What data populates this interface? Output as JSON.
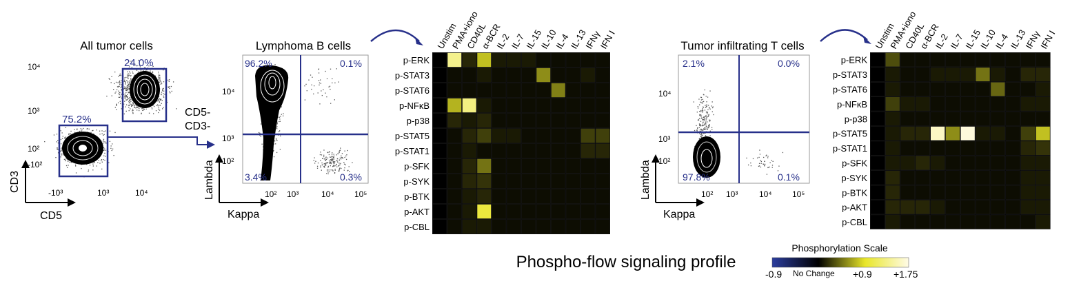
{
  "figure_title": "Phospho-flow signaling profile",
  "scatter_panels": [
    {
      "title": "All tumor cells",
      "x_label": "CD5",
      "y_label": "CD3",
      "x_ticks": [
        "-10³",
        "10³",
        "10⁴"
      ],
      "y_ticks": [
        "10⁴",
        "10³",
        "10²",
        "-10²"
      ],
      "gates": [
        {
          "label": "24.0%"
        },
        {
          "label": "75.2%"
        }
      ],
      "gate_annotation": [
        "CD5-",
        "CD3-"
      ]
    },
    {
      "title": "Lymphoma B cells",
      "x_label": "Kappa",
      "y_label": "Lambda",
      "x_ticks": [
        "10²",
        "10³",
        "10⁴",
        "10⁵"
      ],
      "y_ticks": [
        "10⁴",
        "10³",
        "10²"
      ],
      "quadrants": {
        "top_left": "96.2%",
        "top_right": "0.1%",
        "bottom_left": "3.4%",
        "bottom_right": "0.3%"
      }
    },
    {
      "title": "Tumor infiltrating T cells",
      "x_label": "Kappa",
      "y_label": "Lambda",
      "x_ticks": [
        "10²",
        "10³",
        "10⁴",
        "10⁵"
      ],
      "y_ticks": [
        "10⁴",
        "10³",
        "10²"
      ],
      "quadrants": {
        "top_left": "2.1%",
        "top_right": "0.0%",
        "bottom_left": "97.8%",
        "bottom_right": "0.1%"
      }
    }
  ],
  "chart_data": [
    {
      "type": "heatmap",
      "columns": [
        "Unstim",
        "PMA+iono",
        "CD40L",
        "α-BCR",
        "IL-2",
        "IL-7",
        "IL-15",
        "IL-10",
        "IL-4",
        "IL-13",
        "IFNγ",
        "IFN I"
      ],
      "rows": [
        "p-ERK",
        "p-STAT3",
        "p-STAT6",
        "p-NFκB",
        "p-p38",
        "p-STAT5",
        "p-STAT1",
        "p-SFK",
        "p-SYK",
        "p-BTK",
        "p-AKT",
        "p-CBL"
      ],
      "values": [
        [
          0,
          1.35,
          0.15,
          0.75,
          0.1,
          0.1,
          0.1,
          0.05,
          0.05,
          0.05,
          0.05,
          0.05
        ],
        [
          0,
          0.05,
          0.05,
          0.1,
          0.05,
          0.05,
          0.05,
          0.55,
          0.05,
          0.05,
          0.1,
          0.05
        ],
        [
          0,
          0.05,
          0.05,
          0.05,
          0.05,
          0.05,
          0.05,
          0.05,
          0.5,
          0.05,
          0.05,
          0.05
        ],
        [
          0,
          0.7,
          1.3,
          0.1,
          0.05,
          0.05,
          0.05,
          0.05,
          0.05,
          0.05,
          0.05,
          0.05
        ],
        [
          0,
          0.15,
          0.1,
          0.15,
          0.05,
          0.05,
          0.05,
          0.05,
          0.05,
          0.05,
          0.05,
          0.05
        ],
        [
          0,
          0.05,
          0.15,
          0.25,
          0.1,
          0.1,
          0.05,
          0.05,
          0.05,
          0.05,
          0.25,
          0.25
        ],
        [
          0,
          0.05,
          0.1,
          0.05,
          0.05,
          0.05,
          0.05,
          0.05,
          0.05,
          0.05,
          0.15,
          0.15
        ],
        [
          0,
          0.05,
          0.15,
          0.45,
          0.05,
          0.05,
          0.05,
          0.05,
          0.05,
          0.05,
          0.05,
          0.05
        ],
        [
          0,
          0.05,
          0.15,
          0.2,
          0.05,
          0.05,
          0.05,
          0.05,
          0.05,
          0.05,
          0.05,
          0.05
        ],
        [
          0,
          0.05,
          0.1,
          0.15,
          0.05,
          0.05,
          0.05,
          0.05,
          0.05,
          0.05,
          0.05,
          0.05
        ],
        [
          0,
          0.05,
          0.1,
          1.0,
          0.05,
          0.05,
          0.05,
          0.05,
          0.05,
          0.05,
          0.05,
          0.05
        ],
        [
          0,
          0.05,
          0.1,
          0.1,
          0.05,
          0.05,
          0.05,
          0.05,
          0.05,
          0.05,
          0.05,
          0.05
        ]
      ]
    },
    {
      "type": "heatmap",
      "columns": [
        "Unstim",
        "PMA+iono",
        "CD40L",
        "α-BCR",
        "IL-2",
        "IL-7",
        "IL-15",
        "IL-10",
        "IL-4",
        "IL-13",
        "IFNγ",
        "IFN I"
      ],
      "rows": [
        "p-ERK",
        "p-STAT3",
        "p-STAT6",
        "p-NFκB",
        "p-p38",
        "p-STAT5",
        "p-STAT1",
        "p-SFK",
        "p-SYK",
        "p-BTK",
        "p-AKT",
        "p-CBL"
      ],
      "values": [
        [
          0,
          0.3,
          0.05,
          0.05,
          0.05,
          0.05,
          0.05,
          0.05,
          0.05,
          0.05,
          0.05,
          0.05
        ],
        [
          0,
          0.1,
          0.05,
          0.05,
          0.1,
          0.1,
          0.1,
          0.45,
          0.1,
          0.05,
          0.15,
          0.15
        ],
        [
          0,
          0.1,
          0.05,
          0.05,
          0.05,
          0.05,
          0.05,
          0.05,
          0.4,
          0.05,
          0.05,
          0.1
        ],
        [
          0,
          0.25,
          0.1,
          0.1,
          0.05,
          0.05,
          0.05,
          0.05,
          0.05,
          0.05,
          0.1,
          0.1
        ],
        [
          0,
          0.1,
          0.05,
          0.05,
          0.05,
          0.05,
          0.05,
          0.05,
          0.05,
          0.05,
          0.05,
          0.05
        ],
        [
          0,
          0.1,
          0.15,
          0.15,
          1.6,
          0.55,
          1.7,
          0.1,
          0.1,
          0.05,
          0.25,
          0.75
        ],
        [
          0,
          0.1,
          0.05,
          0.05,
          0.05,
          0.05,
          0.05,
          0.05,
          0.05,
          0.05,
          0.15,
          0.2
        ],
        [
          0,
          0.1,
          0.1,
          0.15,
          0.1,
          0.05,
          0.05,
          0.05,
          0.05,
          0.05,
          0.1,
          0.1
        ],
        [
          0,
          0.15,
          0.05,
          0.05,
          0.05,
          0.05,
          0.05,
          0.05,
          0.05,
          0.05,
          0.1,
          0.1
        ],
        [
          0,
          0.15,
          0.05,
          0.05,
          0.05,
          0.05,
          0.05,
          0.05,
          0.05,
          0.05,
          0.1,
          0.1
        ],
        [
          0,
          0.15,
          0.15,
          0.15,
          0.1,
          0.05,
          0.05,
          0.05,
          0.05,
          0.05,
          0.1,
          0.1
        ],
        [
          0,
          0.1,
          0.05,
          0.05,
          0.05,
          0.05,
          0.05,
          0.05,
          0.05,
          0.05,
          0.05,
          0.1
        ]
      ]
    }
  ],
  "color_scale": {
    "title": "Phosphorylation Scale",
    "min_label": "-0.9",
    "mid_label": "No Change",
    "high_label": "+0.9",
    "max_label": "+1.75",
    "min": -0.9,
    "max": 1.75,
    "colors": {
      "negative": "#2b3d9e",
      "zero": "#000000",
      "positive": "#e8e628",
      "max": "#fffbe6"
    }
  },
  "gate_color": "#27308a"
}
